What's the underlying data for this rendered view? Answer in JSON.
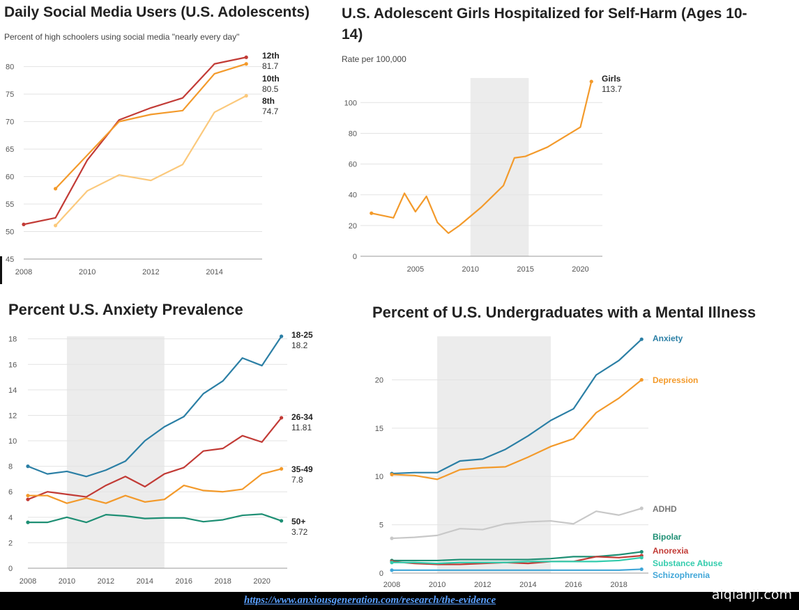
{
  "chart_data": [
    {
      "id": "c1",
      "type": "line",
      "title": "Daily Social Media Users (U.S. Adolescents)",
      "subtitle": "Percent of high schoolers using social media \"nearly every day\"",
      "xlim": [
        2008,
        2015.5
      ],
      "ylim": [
        45,
        83
      ],
      "xticks": [
        2008,
        2010,
        2012,
        2014
      ],
      "yticks": [
        45,
        50,
        55,
        60,
        65,
        70,
        75,
        80
      ],
      "shade": null,
      "series": [
        {
          "name": "12th",
          "label_value": "81.7",
          "color": "#c23b36",
          "x": [
            2008,
            2009,
            2010,
            2011,
            2012,
            2013,
            2014,
            2015
          ],
          "y": [
            51.3,
            52.5,
            63,
            70.3,
            72.5,
            74.3,
            80.5,
            81.7
          ]
        },
        {
          "name": "10th",
          "label_value": "80.5",
          "color": "#f39a2b",
          "x": [
            2009,
            2011,
            2012,
            2013,
            2014,
            2015
          ],
          "y": [
            57.8,
            70,
            71.3,
            72,
            78.7,
            80.5
          ]
        },
        {
          "name": "8th",
          "label_value": "74.7",
          "color": "#fbc97c",
          "x": [
            2009,
            2010,
            2011,
            2012,
            2013,
            2014,
            2015
          ],
          "y": [
            51.1,
            57.4,
            60.3,
            59.3,
            62.2,
            71.7,
            74.7
          ]
        }
      ]
    },
    {
      "id": "c2",
      "type": "line",
      "title": "U.S. Adolescent Girls Hospitalized for Self-Harm (Ages 10-14)",
      "title_lines": [
        "U.S. Adolescent Girls Hospitalized for Self-Harm (Ages 10-",
        "14)"
      ],
      "subtitle": "Rate per 100,000",
      "xlim": [
        2000,
        2022
      ],
      "ylim": [
        0,
        116
      ],
      "xticks": [
        2005,
        2010,
        2015,
        2020
      ],
      "yticks": [
        0,
        20,
        40,
        60,
        80,
        100
      ],
      "shade": [
        2010,
        2015.3
      ],
      "series": [
        {
          "name": "Girls",
          "label_value": "113.7",
          "color": "#f39a2b",
          "x": [
            2001,
            2003,
            2004,
            2005,
            2006,
            2007,
            2008,
            2009,
            2010,
            2011,
            2012,
            2013,
            2014,
            2015,
            2017,
            2020,
            2021
          ],
          "y": [
            28,
            25,
            41,
            29,
            39,
            22,
            15,
            20,
            26,
            32,
            39,
            46,
            64,
            65,
            71,
            84,
            113.7
          ]
        }
      ]
    },
    {
      "id": "c3",
      "type": "line",
      "title": "Percent U.S. Anxiety Prevalence",
      "xlim": [
        2008,
        2021.3
      ],
      "ylim": [
        0,
        18.2
      ],
      "xticks": [
        2008,
        2010,
        2012,
        2014,
        2016,
        2018,
        2020
      ],
      "yticks": [
        0,
        2,
        4,
        6,
        8,
        10,
        12,
        14,
        16,
        18
      ],
      "shade": [
        2010,
        2015
      ],
      "series": [
        {
          "name": "18-25",
          "label_value": "18.2",
          "color": "#2b7fa5",
          "x": [
            2008,
            2009,
            2010,
            2011,
            2012,
            2013,
            2014,
            2015,
            2016,
            2017,
            2018,
            2019,
            2020,
            2021
          ],
          "y": [
            8,
            7.4,
            7.6,
            7.2,
            7.7,
            8.4,
            10,
            11.1,
            11.9,
            13.7,
            14.7,
            16.5,
            15.9,
            18.2
          ]
        },
        {
          "name": "26-34",
          "label_value": "11.81",
          "color": "#c23b36",
          "x": [
            2008,
            2009,
            2010,
            2011,
            2012,
            2013,
            2014,
            2015,
            2016,
            2017,
            2018,
            2019,
            2020,
            2021
          ],
          "y": [
            5.4,
            6,
            5.8,
            5.6,
            6.5,
            7.2,
            6.4,
            7.4,
            7.9,
            9.2,
            9.4,
            10.4,
            9.9,
            11.81
          ]
        },
        {
          "name": "35-49",
          "label_value": "7.8",
          "color": "#f39a2b",
          "x": [
            2008,
            2009,
            2010,
            2011,
            2012,
            2013,
            2014,
            2015,
            2016,
            2017,
            2018,
            2019,
            2020,
            2021
          ],
          "y": [
            5.7,
            5.7,
            5.1,
            5.5,
            5.1,
            5.7,
            5.2,
            5.4,
            6.5,
            6.1,
            6,
            6.2,
            7.4,
            7.8
          ]
        },
        {
          "name": "50+",
          "label_value": "3.72",
          "color": "#1e8f74",
          "x": [
            2008,
            2009,
            2010,
            2011,
            2012,
            2013,
            2014,
            2015,
            2016,
            2017,
            2018,
            2019,
            2020,
            2021
          ],
          "y": [
            3.6,
            3.6,
            4,
            3.6,
            4.2,
            4.1,
            3.9,
            3.95,
            3.95,
            3.65,
            3.8,
            4.15,
            4.25,
            3.72
          ]
        }
      ]
    },
    {
      "id": "c4",
      "type": "line",
      "title": "Percent of U.S. Undergraduates with a Mental Illness",
      "xlim": [
        2008,
        2019.3
      ],
      "ylim": [
        0,
        24.5
      ],
      "xticks": [
        2008,
        2010,
        2012,
        2014,
        2016,
        2018
      ],
      "yticks": [
        0,
        5,
        10,
        15,
        20
      ],
      "shade": [
        2010,
        2015
      ],
      "series": [
        {
          "name": "Anxiety",
          "color": "#2b7fa5",
          "x": [
            2008,
            2009,
            2010,
            2011,
            2012,
            2013,
            2014,
            2015,
            2016,
            2017,
            2018,
            2019
          ],
          "y": [
            10.3,
            10.4,
            10.4,
            11.6,
            11.8,
            12.8,
            14.2,
            15.8,
            17,
            20.5,
            22,
            24.2
          ]
        },
        {
          "name": "Depression",
          "color": "#f39a2b",
          "x": [
            2008,
            2009,
            2010,
            2011,
            2012,
            2013,
            2014,
            2015,
            2016,
            2017,
            2018,
            2019
          ],
          "y": [
            10.2,
            10.1,
            9.7,
            10.7,
            10.9,
            11,
            12,
            13.1,
            13.9,
            16.6,
            18.1,
            20
          ]
        },
        {
          "name": "ADHD",
          "color": "#c8c8c8",
          "x": [
            2008,
            2009,
            2010,
            2011,
            2012,
            2013,
            2014,
            2015,
            2016,
            2017,
            2018,
            2019
          ],
          "y": [
            3.6,
            3.7,
            3.9,
            4.6,
            4.5,
            5.1,
            5.3,
            5.4,
            5.1,
            6.4,
            6,
            6.7
          ]
        },
        {
          "name": "Bipolar",
          "color": "#1e8f74",
          "x": [
            2008,
            2009,
            2010,
            2011,
            2012,
            2013,
            2014,
            2015,
            2016,
            2017,
            2018,
            2019
          ],
          "y": [
            1.3,
            1.3,
            1.3,
            1.4,
            1.4,
            1.4,
            1.4,
            1.5,
            1.7,
            1.7,
            1.9,
            2.2
          ]
        },
        {
          "name": "Anorexia",
          "color": "#c23b36",
          "x": [
            2008,
            2009,
            2010,
            2011,
            2012,
            2013,
            2014,
            2015,
            2016,
            2017,
            2018,
            2019
          ],
          "y": [
            1.2,
            1,
            0.9,
            0.9,
            1,
            1.1,
            1,
            1.2,
            1.2,
            1.7,
            1.6,
            1.8
          ]
        },
        {
          "name": "Substance Abuse",
          "color": "#33ccad",
          "x": [
            2008,
            2009,
            2010,
            2011,
            2012,
            2013,
            2014,
            2015,
            2016,
            2017,
            2018,
            2019
          ],
          "y": [
            1.1,
            1.1,
            1,
            1.1,
            1.1,
            1.1,
            1.2,
            1.2,
            1.2,
            1.2,
            1.3,
            1.6
          ]
        },
        {
          "name": "Schizophrenia",
          "color": "#3fa6d8",
          "x": [
            2008,
            2009,
            2010,
            2011,
            2012,
            2013,
            2014,
            2015,
            2016,
            2017,
            2018,
            2019
          ],
          "y": [
            0.3,
            0.3,
            0.3,
            0.3,
            0.3,
            0.3,
            0.3,
            0.3,
            0.3,
            0.3,
            0.3,
            0.4
          ]
        }
      ]
    }
  ],
  "footer": {
    "url": "https://www.anxiousgeneration.com/research/the-evidence",
    "watermark": "aiqianji.com"
  }
}
